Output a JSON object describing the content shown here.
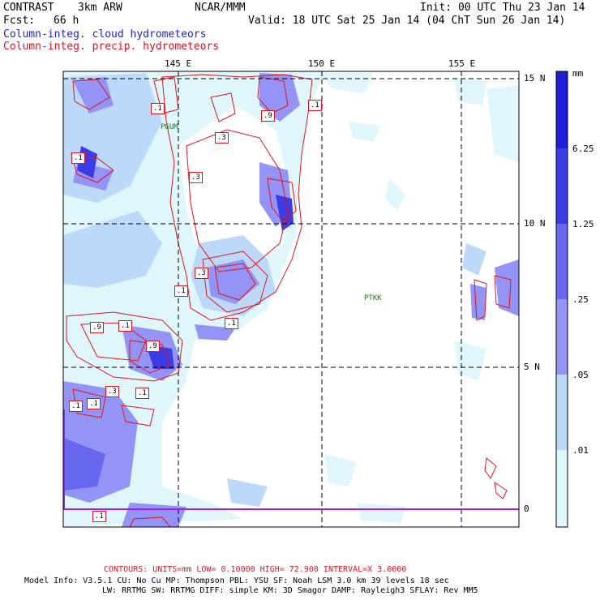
{
  "header": {
    "project": "CONTRAST",
    "model": "3km ARW",
    "org": "NCAR/MMM",
    "init": "Init: 00 UTC Thu 23 Jan 14",
    "fcst_label": "Fcst:",
    "fcst_value": "66 h",
    "valid": "Valid: 18 UTC Sat 25 Jan 14 (04 ChT Sun 26 Jan 14)",
    "field1": "Column-integ. cloud hydrometeors",
    "field2": "Column-integ. precip. hydrometeors"
  },
  "axes": {
    "lon_labels": [
      "145 E",
      "150 E",
      "155 E"
    ],
    "lat_labels": [
      "15 N",
      "10 N",
      "5 N",
      "0"
    ]
  },
  "stations": [
    "PGUM",
    "PTKK"
  ],
  "contour_labels": [
    ".1",
    ".9",
    ".1",
    ".3",
    ".1",
    ".3",
    ".3",
    ".1",
    ".1",
    ".9",
    ".1",
    ".9",
    ".3",
    ".1",
    ".1",
    ".1",
    ".1"
  ],
  "colorbar": {
    "unit": "mm",
    "levels": [
      "6.25",
      "1.25",
      ".25",
      ".05",
      ".01"
    ],
    "colors": [
      "#1c1cd9",
      "#3c3ce6",
      "#6767ef",
      "#9494f6",
      "#bcd9fa",
      "#dff6fb",
      "#ffffff"
    ]
  },
  "footer": {
    "contours": "CONTOURS:  UNITS=mm  LOW= 0.10000     HIGH= 72.900     INTERVAL=X  3.0000",
    "model_line1": "Model Info: V3.5.1    CU: No Cu    MP: Thompson    PBL: YSU      SF: Noah LSM     3.0 km   39 levels    18 sec",
    "model_line2": "LW: RRTMG    SW: RRTMG   DIFF: simple KM: 3D Smagor DAMP: Rayleigh3  SFLAY: Rev MM5"
  }
}
